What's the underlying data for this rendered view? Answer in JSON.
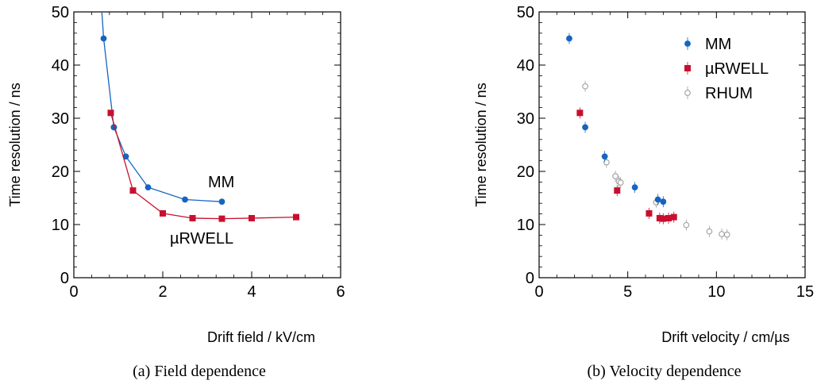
{
  "colors": {
    "mm": "#1565c0",
    "urwell": "#c8102e",
    "rhum": "#9e9e9e"
  },
  "chart_data": [
    {
      "type": "line",
      "caption": "(a) Field dependence",
      "xlabel": "Drift field / kV/cm",
      "ylabel": "Time resolution / ns",
      "xlim": [
        0,
        6
      ],
      "ylim": [
        0,
        50
      ],
      "xticks": [
        "0",
        "2",
        "4",
        "6"
      ],
      "yticks": [
        "0",
        "10",
        "20",
        "30",
        "40",
        "50"
      ],
      "annotations": [
        "MM",
        "µRWELL"
      ],
      "series": [
        {
          "name": "MM",
          "marker": "circle",
          "x": [
            0.67,
            0.9,
            1.17,
            1.67,
            2.5,
            3.33
          ],
          "y": [
            45.0,
            28.3,
            22.8,
            17.0,
            14.7,
            14.3
          ],
          "curve_top": {
            "x": 0.63,
            "y": 50.0
          }
        },
        {
          "name": "µRWELL",
          "marker": "square",
          "x": [
            0.83,
            1.33,
            2.0,
            2.67,
            3.33,
            4.0,
            5.0
          ],
          "y": [
            31.0,
            16.4,
            12.1,
            11.2,
            11.1,
            11.2,
            11.4
          ]
        }
      ]
    },
    {
      "type": "scatter",
      "caption": "(b) Velocity dependence",
      "xlabel": "Drift velocity / cm/µs",
      "ylabel": "Time resolution / ns",
      "xlim": [
        0,
        15
      ],
      "ylim": [
        0,
        50
      ],
      "xticks": [
        "0",
        "5",
        "10",
        "15"
      ],
      "yticks": [
        "0",
        "10",
        "20",
        "30",
        "40",
        "50"
      ],
      "legend_position": "top-right",
      "series": [
        {
          "name": "MM",
          "marker": "circle",
          "x": [
            1.7,
            2.6,
            3.7,
            5.4,
            6.7,
            7.0
          ],
          "y": [
            45.0,
            28.3,
            22.8,
            17.0,
            14.7,
            14.3
          ]
        },
        {
          "name": "µRWELL",
          "marker": "square",
          "x": [
            2.3,
            4.4,
            6.2,
            6.8,
            7.0,
            7.3,
            7.6
          ],
          "y": [
            31.0,
            16.4,
            12.1,
            11.2,
            11.1,
            11.2,
            11.4
          ]
        },
        {
          "name": "RHUM",
          "marker": "open-circle",
          "x": [
            2.6,
            3.8,
            4.3,
            4.5,
            4.6,
            6.6,
            8.3,
            9.6,
            10.3,
            10.6
          ],
          "y": [
            36.0,
            21.7,
            19.1,
            18.1,
            17.9,
            14.2,
            9.9,
            8.7,
            8.2,
            8.1
          ]
        }
      ]
    }
  ]
}
